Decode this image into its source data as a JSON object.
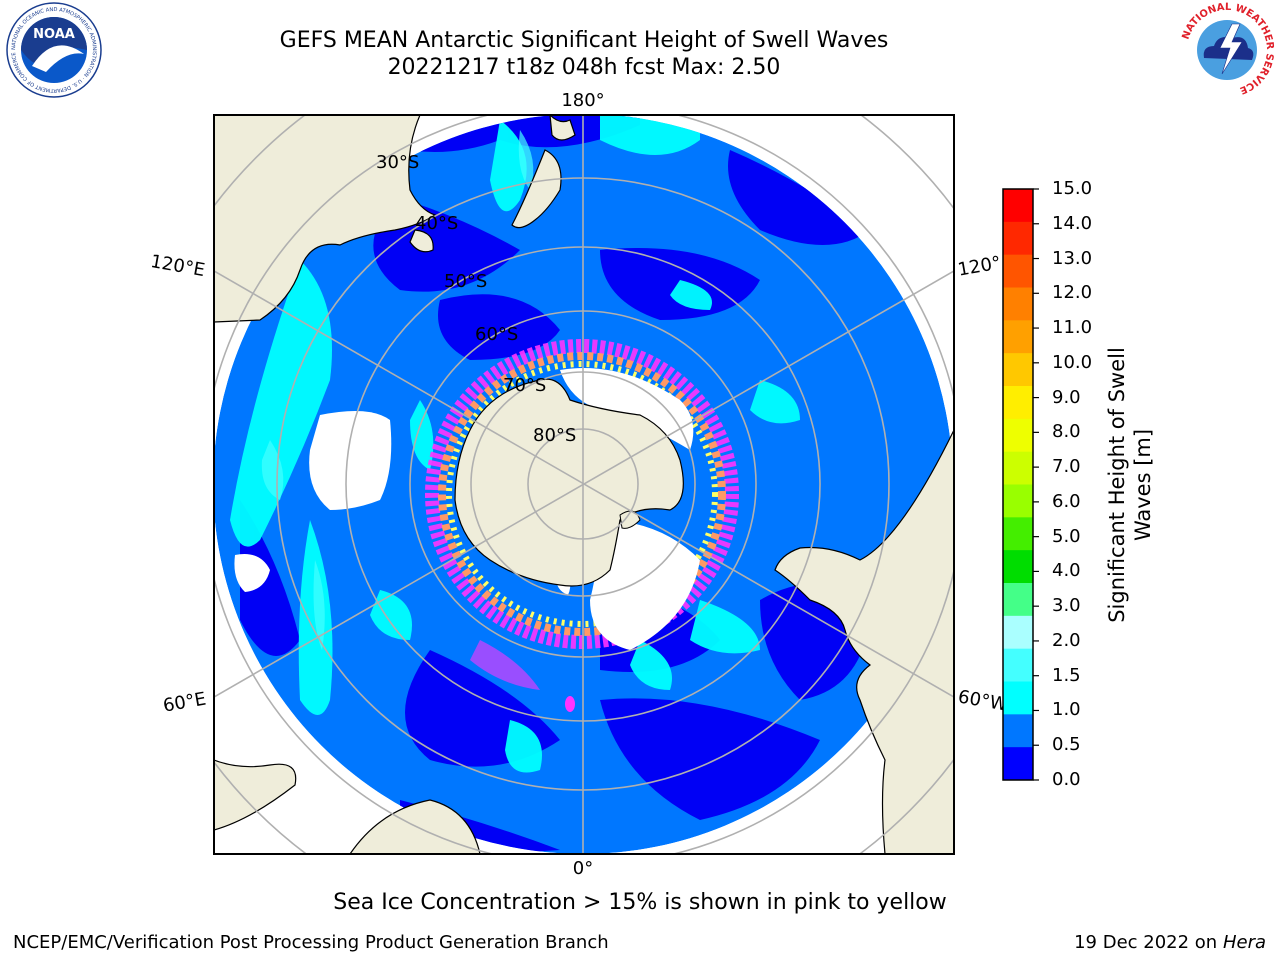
{
  "header": {
    "title": "GEFS MEAN Antarctic Significant Height of Swell Waves",
    "subtitle": "20221217 t18z 048h fcst   Max: 2.50"
  },
  "logos": {
    "noaa": {
      "text": "NOAA",
      "ring_text": "NATIONAL OCEANIC AND ATMOSPHERIC ADMINISTRATION · U.S. DEPARTMENT OF COMMERCE"
    },
    "nws": {
      "ring_text": "NATIONAL WEATHER SERVICE"
    }
  },
  "map": {
    "projection": "south-polar-stereographic",
    "longitude_labels": {
      "top": "180°",
      "upper_left": "120°E",
      "upper_right": "120°",
      "lower_left": "60°E",
      "lower_right": "60°W",
      "bottom": "0°"
    },
    "latitude_labels": [
      "30°S",
      "40°S",
      "50°S",
      "60°S",
      "70°S",
      "80°S"
    ],
    "colors": {
      "land": "#efedda",
      "ocean_0_0p5": "#0000f5",
      "ocean_0p5_1": "#0077ff",
      "ocean_1_1p5": "#00ffff",
      "ocean_1p5_2": "#00e8e8",
      "sea_ice_low": "#ff33ff",
      "sea_ice_mid": "#ff9966",
      "sea_ice_high": "#ffff66",
      "grid": "#b0b0b0"
    }
  },
  "colorbar": {
    "label": "Significant Height of Swell Waves [m]",
    "label_line1": "Significant Height of Swell",
    "label_line2": "Waves [m]",
    "ticks": [
      "15.0",
      "14.0",
      "13.0",
      "12.0",
      "11.0",
      "10.0",
      "9.0",
      "8.0",
      "7.0",
      "6.0",
      "5.0",
      "4.0",
      "3.0",
      "2.0",
      "1.5",
      "1.0",
      "0.5",
      "0.0"
    ],
    "bins": [
      {
        "color": "#ff0000"
      },
      {
        "color": "#ff2800"
      },
      {
        "color": "#ff5500"
      },
      {
        "color": "#ff8000"
      },
      {
        "color": "#ffa000"
      },
      {
        "color": "#ffc800"
      },
      {
        "color": "#ffee00"
      },
      {
        "color": "#eeff00"
      },
      {
        "color": "#ccff00"
      },
      {
        "color": "#99ff00"
      },
      {
        "color": "#44ee00"
      },
      {
        "color": "#00dd00"
      },
      {
        "color": "#44ff88"
      },
      {
        "color": "#aaffff"
      },
      {
        "color": "#44ffff"
      },
      {
        "color": "#00ffff"
      },
      {
        "color": "#0077ff"
      },
      {
        "color": "#0000ff"
      }
    ]
  },
  "footer": {
    "note": "Sea Ice Concentration > 15% is shown in pink to yellow",
    "credit": "NCEP/EMC/Verification Post Processing Product Generation Branch",
    "date": "19 Dec 2022 on",
    "machine": "Hera"
  }
}
